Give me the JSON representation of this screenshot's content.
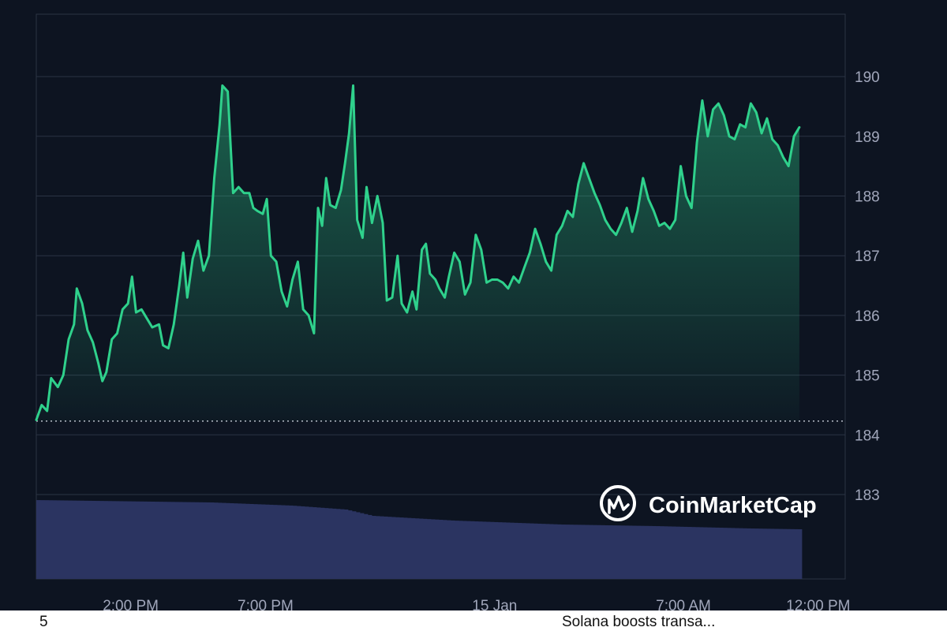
{
  "chart_data": {
    "type": "line",
    "title": "",
    "xlabel": "",
    "ylabel": "",
    "ylim": [
      182,
      191
    ],
    "baseline": 184.23,
    "y_ticks": [
      183,
      184,
      185,
      186,
      187,
      188,
      189,
      190
    ],
    "x_ticks": [
      {
        "label": "2:00 PM",
        "t": 10.5
      },
      {
        "label": "7:00 PM",
        "t": 15.5
      },
      {
        "label": "15 Jan",
        "t": 24.0
      },
      {
        "label": "7:00 AM",
        "t": 31.0
      },
      {
        "label": "12:00 PM",
        "t": 36.0
      }
    ],
    "x_range_hours": [
      7.0,
      37.0
    ],
    "price_points": [
      [
        7.0,
        184.25
      ],
      [
        7.2,
        184.5
      ],
      [
        7.4,
        184.4
      ],
      [
        7.55,
        184.95
      ],
      [
        7.8,
        184.8
      ],
      [
        8.0,
        185.0
      ],
      [
        8.2,
        185.6
      ],
      [
        8.4,
        185.85
      ],
      [
        8.5,
        186.45
      ],
      [
        8.7,
        186.2
      ],
      [
        8.9,
        185.75
      ],
      [
        9.1,
        185.55
      ],
      [
        9.3,
        185.2
      ],
      [
        9.45,
        184.9
      ],
      [
        9.6,
        185.05
      ],
      [
        9.8,
        185.6
      ],
      [
        10.0,
        185.7
      ],
      [
        10.2,
        186.1
      ],
      [
        10.4,
        186.2
      ],
      [
        10.55,
        186.65
      ],
      [
        10.7,
        186.05
      ],
      [
        10.9,
        186.1
      ],
      [
        11.1,
        185.95
      ],
      [
        11.3,
        185.8
      ],
      [
        11.55,
        185.85
      ],
      [
        11.7,
        185.5
      ],
      [
        11.9,
        185.45
      ],
      [
        12.1,
        185.85
      ],
      [
        12.3,
        186.5
      ],
      [
        12.45,
        187.05
      ],
      [
        12.6,
        186.3
      ],
      [
        12.8,
        186.95
      ],
      [
        13.0,
        187.25
      ],
      [
        13.2,
        186.75
      ],
      [
        13.4,
        187.0
      ],
      [
        13.6,
        188.3
      ],
      [
        13.8,
        189.2
      ],
      [
        13.9,
        189.85
      ],
      [
        14.1,
        189.75
      ],
      [
        14.3,
        188.05
      ],
      [
        14.5,
        188.15
      ],
      [
        14.7,
        188.05
      ],
      [
        14.9,
        188.05
      ],
      [
        15.05,
        187.8
      ],
      [
        15.2,
        187.75
      ],
      [
        15.4,
        187.7
      ],
      [
        15.55,
        187.95
      ],
      [
        15.7,
        187.0
      ],
      [
        15.9,
        186.9
      ],
      [
        16.1,
        186.4
      ],
      [
        16.3,
        186.15
      ],
      [
        16.5,
        186.6
      ],
      [
        16.7,
        186.9
      ],
      [
        16.9,
        186.1
      ],
      [
        17.1,
        186.0
      ],
      [
        17.3,
        185.7
      ],
      [
        17.45,
        187.8
      ],
      [
        17.6,
        187.5
      ],
      [
        17.75,
        188.3
      ],
      [
        17.9,
        187.85
      ],
      [
        18.1,
        187.8
      ],
      [
        18.3,
        188.1
      ],
      [
        18.45,
        188.55
      ],
      [
        18.6,
        189.05
      ],
      [
        18.75,
        189.85
      ],
      [
        18.9,
        187.6
      ],
      [
        19.1,
        187.3
      ],
      [
        19.25,
        188.15
      ],
      [
        19.45,
        187.55
      ],
      [
        19.65,
        188.0
      ],
      [
        19.85,
        187.55
      ],
      [
        20.0,
        186.25
      ],
      [
        20.2,
        186.3
      ],
      [
        20.4,
        187.0
      ],
      [
        20.55,
        186.2
      ],
      [
        20.75,
        186.05
      ],
      [
        20.95,
        186.4
      ],
      [
        21.1,
        186.1
      ],
      [
        21.3,
        187.1
      ],
      [
        21.45,
        187.2
      ],
      [
        21.6,
        186.7
      ],
      [
        21.8,
        186.6
      ],
      [
        21.95,
        186.45
      ],
      [
        22.15,
        186.3
      ],
      [
        22.3,
        186.65
      ],
      [
        22.5,
        187.05
      ],
      [
        22.7,
        186.9
      ],
      [
        22.9,
        186.35
      ],
      [
        23.1,
        186.55
      ],
      [
        23.3,
        187.35
      ],
      [
        23.5,
        187.1
      ],
      [
        23.7,
        186.55
      ],
      [
        23.9,
        186.6
      ],
      [
        24.1,
        186.6
      ],
      [
        24.3,
        186.55
      ],
      [
        24.5,
        186.45
      ],
      [
        24.7,
        186.65
      ],
      [
        24.9,
        186.55
      ],
      [
        25.1,
        186.8
      ],
      [
        25.3,
        187.05
      ],
      [
        25.5,
        187.45
      ],
      [
        25.7,
        187.2
      ],
      [
        25.9,
        186.9
      ],
      [
        26.1,
        186.75
      ],
      [
        26.3,
        187.35
      ],
      [
        26.5,
        187.5
      ],
      [
        26.7,
        187.75
      ],
      [
        26.9,
        187.65
      ],
      [
        27.1,
        188.2
      ],
      [
        27.3,
        188.55
      ],
      [
        27.5,
        188.3
      ],
      [
        27.7,
        188.05
      ],
      [
        27.9,
        187.85
      ],
      [
        28.1,
        187.6
      ],
      [
        28.3,
        187.45
      ],
      [
        28.5,
        187.35
      ],
      [
        28.7,
        187.55
      ],
      [
        28.9,
        187.8
      ],
      [
        29.1,
        187.4
      ],
      [
        29.3,
        187.75
      ],
      [
        29.5,
        188.3
      ],
      [
        29.7,
        187.95
      ],
      [
        29.9,
        187.75
      ],
      [
        30.1,
        187.5
      ],
      [
        30.3,
        187.55
      ],
      [
        30.5,
        187.45
      ],
      [
        30.7,
        187.6
      ],
      [
        30.9,
        188.5
      ],
      [
        31.1,
        188.0
      ],
      [
        31.3,
        187.8
      ],
      [
        31.5,
        188.9
      ],
      [
        31.7,
        189.6
      ],
      [
        31.9,
        189.0
      ],
      [
        32.1,
        189.45
      ],
      [
        32.3,
        189.55
      ],
      [
        32.5,
        189.35
      ],
      [
        32.7,
        189.0
      ],
      [
        32.9,
        188.95
      ],
      [
        33.1,
        189.2
      ],
      [
        33.3,
        189.15
      ],
      [
        33.5,
        189.55
      ],
      [
        33.7,
        189.4
      ],
      [
        33.9,
        189.05
      ],
      [
        34.1,
        189.3
      ],
      [
        34.3,
        188.95
      ],
      [
        34.5,
        188.85
      ],
      [
        34.7,
        188.65
      ],
      [
        34.9,
        188.5
      ],
      [
        35.1,
        189.0
      ],
      [
        35.3,
        189.15
      ]
    ],
    "volume_relative": [
      [
        7.0,
        1.0
      ],
      [
        13.5,
        0.97
      ],
      [
        16.5,
        0.93
      ],
      [
        18.5,
        0.88
      ],
      [
        19.5,
        0.8
      ],
      [
        22.5,
        0.74
      ],
      [
        26.5,
        0.69
      ],
      [
        30.0,
        0.67
      ],
      [
        33.5,
        0.64
      ],
      [
        35.3,
        0.63
      ]
    ],
    "colors": {
      "background": "#0d1421",
      "line": "#2fd18c",
      "grid": "#2b3344",
      "volume": "#2b3461",
      "tick_text": "#a1a7bb",
      "baseline": "#b8bec9"
    }
  },
  "watermark": {
    "text": "CoinMarketCap",
    "icon": "coinmarketcap-logo-icon"
  },
  "footer": {
    "left_text": "5",
    "news_text": "Solana boosts transa..."
  }
}
